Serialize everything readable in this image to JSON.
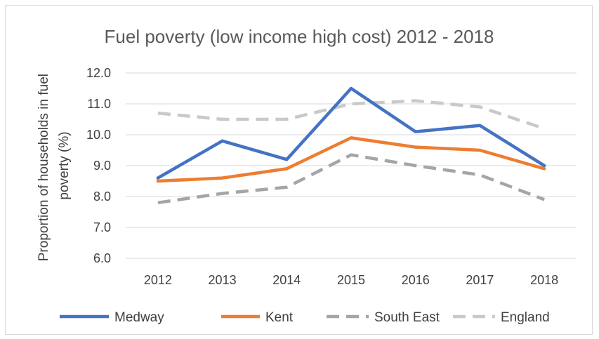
{
  "chart_data": {
    "type": "line",
    "title": "Fuel poverty (low income high cost) 2012 - 2018",
    "ylabel_lines": [
      "Proportion of households in fuel",
      "poverty (%)"
    ],
    "xlabel": "",
    "categories": [
      "2012",
      "2013",
      "2014",
      "2015",
      "2016",
      "2017",
      "2018"
    ],
    "ylim": [
      6.0,
      12.0
    ],
    "yticks": [
      "6.0",
      "7.0",
      "8.0",
      "9.0",
      "10.0",
      "11.0",
      "12.0"
    ],
    "grid": true,
    "legend_position": "bottom",
    "series": [
      {
        "name": "Medway",
        "values": [
          8.6,
          9.8,
          9.2,
          11.5,
          10.1,
          10.3,
          9.0
        ],
        "color": "#4472c4",
        "dashed": false
      },
      {
        "name": "Kent",
        "values": [
          8.5,
          8.6,
          8.9,
          9.9,
          9.6,
          9.5,
          8.9
        ],
        "color": "#ed7d31",
        "dashed": false
      },
      {
        "name": "South East",
        "values": [
          7.8,
          8.1,
          8.3,
          9.35,
          9.0,
          8.7,
          7.9
        ],
        "color": "#a5a5a5",
        "dashed": true
      },
      {
        "name": "England",
        "values": [
          10.7,
          10.5,
          10.5,
          11.0,
          11.1,
          10.9,
          10.2
        ],
        "color": "#c9c9c9",
        "dashed": true
      }
    ]
  }
}
